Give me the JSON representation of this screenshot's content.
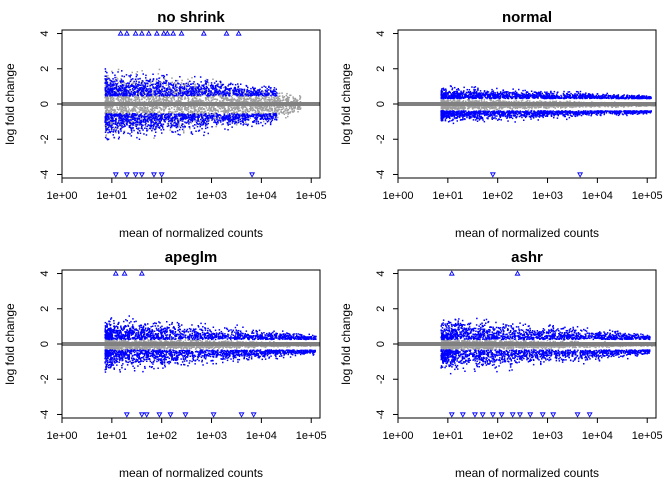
{
  "colors": {
    "not_significant": "#9e9e9e",
    "significant": "#0000ff",
    "zero_line": "#808080",
    "frame": "#000000"
  },
  "chart_data": [
    {
      "type": "scatter",
      "title": "no shrink",
      "xlabel": "mean of normalized counts",
      "ylabel": "log fold change",
      "x_scale": "log10",
      "xlim": [
        1,
        150000
      ],
      "ylim": [
        -4.2,
        4.2
      ],
      "x_tick_labels": [
        "1e+00",
        "1e+01",
        "1e+02",
        "1e+03",
        "1e+04",
        "1e+05"
      ],
      "y_tick_labels": [
        "-4",
        "-2",
        "0",
        "2",
        "4"
      ],
      "grid": false,
      "point_clouds": [
        {
          "series": "significant",
          "x_range": [
            7,
            20000
          ],
          "abs_lfc_range": [
            0.5,
            3.2
          ],
          "count_estimate": 2200
        },
        {
          "series": "not_significant",
          "x_range": [
            6,
            60000
          ],
          "abs_lfc_range": [
            0,
            2.5
          ],
          "count_estimate": 2600
        }
      ],
      "clipped_points": {
        "marker": "triangle",
        "top_y": 4,
        "top_x": [
          15,
          20,
          30,
          40,
          55,
          80,
          110,
          130,
          170,
          250,
          700,
          2000,
          3500
        ],
        "bottom_y": -4,
        "bottom_x": [
          12,
          20,
          30,
          40,
          70,
          100,
          6500
        ]
      }
    },
    {
      "type": "scatter",
      "title": "normal",
      "xlabel": "mean of normalized counts",
      "ylabel": "log fold change",
      "x_scale": "log10",
      "xlim": [
        1,
        150000
      ],
      "ylim": [
        -4.2,
        4.2
      ],
      "x_tick_labels": [
        "1e+00",
        "1e+01",
        "1e+02",
        "1e+03",
        "1e+04",
        "1e+05"
      ],
      "y_tick_labels": [
        "-4",
        "-2",
        "0",
        "2",
        "4"
      ],
      "grid": false,
      "point_clouds": [
        {
          "series": "significant",
          "x_range": [
            7,
            120000
          ],
          "abs_lfc_range": [
            0.35,
            1.6
          ],
          "count_estimate": 2600
        },
        {
          "series": "not_significant",
          "x_range": [
            6,
            140000
          ],
          "abs_lfc_range": [
            0,
            0.45
          ],
          "count_estimate": 2300
        }
      ],
      "clipped_points": {
        "marker": "triangle",
        "top_y": 4,
        "top_x": [],
        "bottom_y": -4,
        "bottom_x": [
          80,
          4500
        ]
      }
    },
    {
      "type": "scatter",
      "title": "apeglm",
      "xlabel": "mean of normalized counts",
      "ylabel": "log fold change",
      "x_scale": "log10",
      "xlim": [
        1,
        150000
      ],
      "ylim": [
        -4.2,
        4.2
      ],
      "x_tick_labels": [
        "1e+00",
        "1e+01",
        "1e+02",
        "1e+03",
        "1e+04",
        "1e+05"
      ],
      "y_tick_labels": [
        "-4",
        "-2",
        "0",
        "2",
        "4"
      ],
      "grid": false,
      "point_clouds": [
        {
          "series": "significant",
          "x_range": [
            6,
            120000
          ],
          "abs_lfc_range": [
            0.3,
            2.6
          ],
          "count_estimate": 2700
        },
        {
          "series": "not_significant",
          "x_range": [
            6,
            140000
          ],
          "abs_lfc_range": [
            0,
            0.5
          ],
          "count_estimate": 2300
        }
      ],
      "clipped_points": {
        "marker": "triangle",
        "top_y": 4,
        "top_x": [
          12,
          18,
          40
        ],
        "bottom_y": -4,
        "bottom_x": [
          20,
          40,
          50,
          90,
          150,
          300,
          1100,
          4000,
          7000
        ]
      }
    },
    {
      "type": "scatter",
      "title": "ashr",
      "xlabel": "mean of normalized counts",
      "ylabel": "log fold change",
      "x_scale": "log10",
      "xlim": [
        1,
        150000
      ],
      "ylim": [
        -4.2,
        4.2
      ],
      "x_tick_labels": [
        "1e+00",
        "1e+01",
        "1e+02",
        "1e+03",
        "1e+04",
        "1e+05"
      ],
      "y_tick_labels": [
        "-4",
        "-2",
        "0",
        "2",
        "4"
      ],
      "grid": false,
      "point_clouds": [
        {
          "series": "significant",
          "x_range": [
            7,
            110000
          ],
          "abs_lfc_range": [
            0.3,
            2.6
          ],
          "count_estimate": 2600
        },
        {
          "series": "not_significant",
          "x_range": [
            6,
            140000
          ],
          "abs_lfc_range": [
            0,
            0.45
          ],
          "count_estimate": 2300
        }
      ],
      "clipped_points": {
        "marker": "triangle",
        "top_y": 4,
        "top_x": [
          12,
          250
        ],
        "bottom_y": -4,
        "bottom_x": [
          12,
          20,
          35,
          50,
          80,
          120,
          200,
          280,
          450,
          800,
          1300,
          4000,
          7000
        ]
      }
    }
  ]
}
